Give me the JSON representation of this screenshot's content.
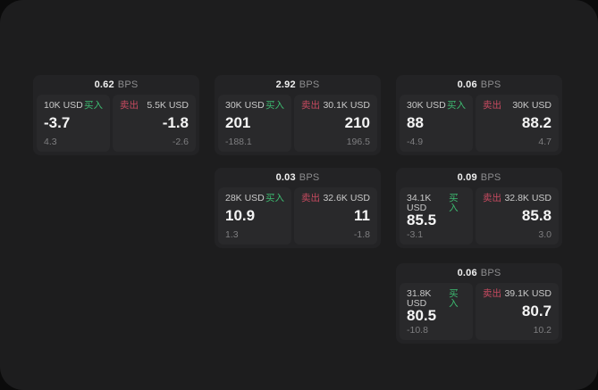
{
  "app": {
    "bps_unit": "BPS",
    "buy_label": "买入",
    "sell_label": "卖出"
  },
  "colors": {
    "background": "#0b0b0b",
    "panel": "#1d1d1e",
    "card": "#232325",
    "tile": "#29292b",
    "buy_green": "#3dbb71",
    "sell_red": "#c74a60"
  },
  "cards": [
    {
      "bps": "0.62",
      "buy": {
        "size": "10K USD",
        "value": "-3.7",
        "delta": "4.3"
      },
      "sell": {
        "size": "5.5K USD",
        "value": "-1.8",
        "delta": "-2.6"
      }
    },
    {
      "bps": "2.92",
      "buy": {
        "size": "30K USD",
        "value": "201",
        "delta": "-188.1"
      },
      "sell": {
        "size": "30.1K USD",
        "value": "210",
        "delta": "196.5"
      }
    },
    {
      "bps": "0.06",
      "buy": {
        "size": "30K USD",
        "value": "88",
        "delta": "-4.9"
      },
      "sell": {
        "size": "30K USD",
        "value": "88.2",
        "delta": "4.7"
      }
    },
    {
      "bps": "0.03",
      "buy": {
        "size": "28K USD",
        "value": "10.9",
        "delta": "1.3"
      },
      "sell": {
        "size": "32.6K USD",
        "value": "11",
        "delta": "-1.8"
      }
    },
    {
      "bps": "0.09",
      "buy": {
        "size": "34.1K USD",
        "value": "85.5",
        "delta": "-3.1"
      },
      "sell": {
        "size": "32.8K USD",
        "value": "85.8",
        "delta": "3.0"
      }
    },
    {
      "bps": "0.06",
      "buy": {
        "size": "31.8K USD",
        "value": "80.5",
        "delta": "-10.8"
      },
      "sell": {
        "size": "39.1K USD",
        "value": "80.7",
        "delta": "10.2"
      }
    }
  ]
}
